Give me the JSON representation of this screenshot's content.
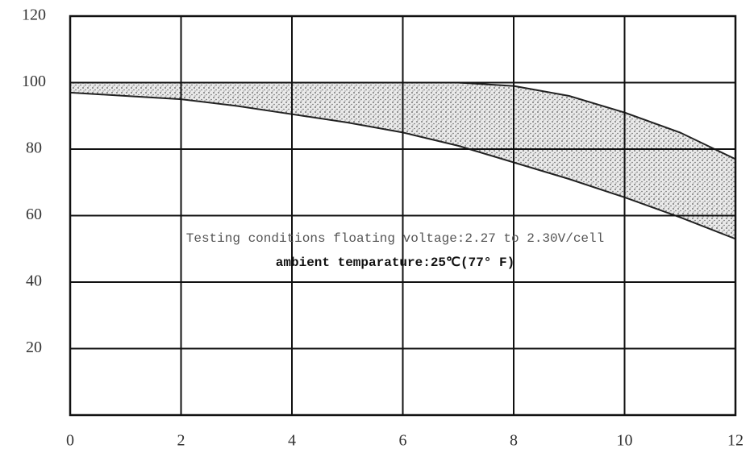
{
  "chart_data": {
    "type": "band",
    "x": [
      0,
      1,
      2,
      3,
      4,
      5,
      6,
      7,
      8,
      9,
      10,
      11,
      12
    ],
    "series": [
      {
        "color": "#222222",
        "values": [
          100,
          100,
          100,
          100,
          100,
          100,
          100,
          100,
          99,
          96,
          91,
          85,
          77
        ]
      },
      {
        "color": "#222222",
        "values": [
          97,
          96,
          95,
          93,
          90.5,
          88,
          85,
          81,
          76,
          71,
          65.5,
          59.5,
          53
        ]
      }
    ],
    "fill": "#777777",
    "xlim": [
      0,
      12
    ],
    "xticks": [
      0,
      2,
      4,
      6,
      8,
      10,
      12
    ],
    "ylim": [
      0,
      120
    ],
    "yticks": [
      20,
      40,
      60,
      80,
      100,
      120
    ],
    "grid": true,
    "annotations": [
      "Testing conditions floating voltage:2.27 to 2.30V/cell",
      "ambient temparature:25℃(77° F)"
    ]
  }
}
